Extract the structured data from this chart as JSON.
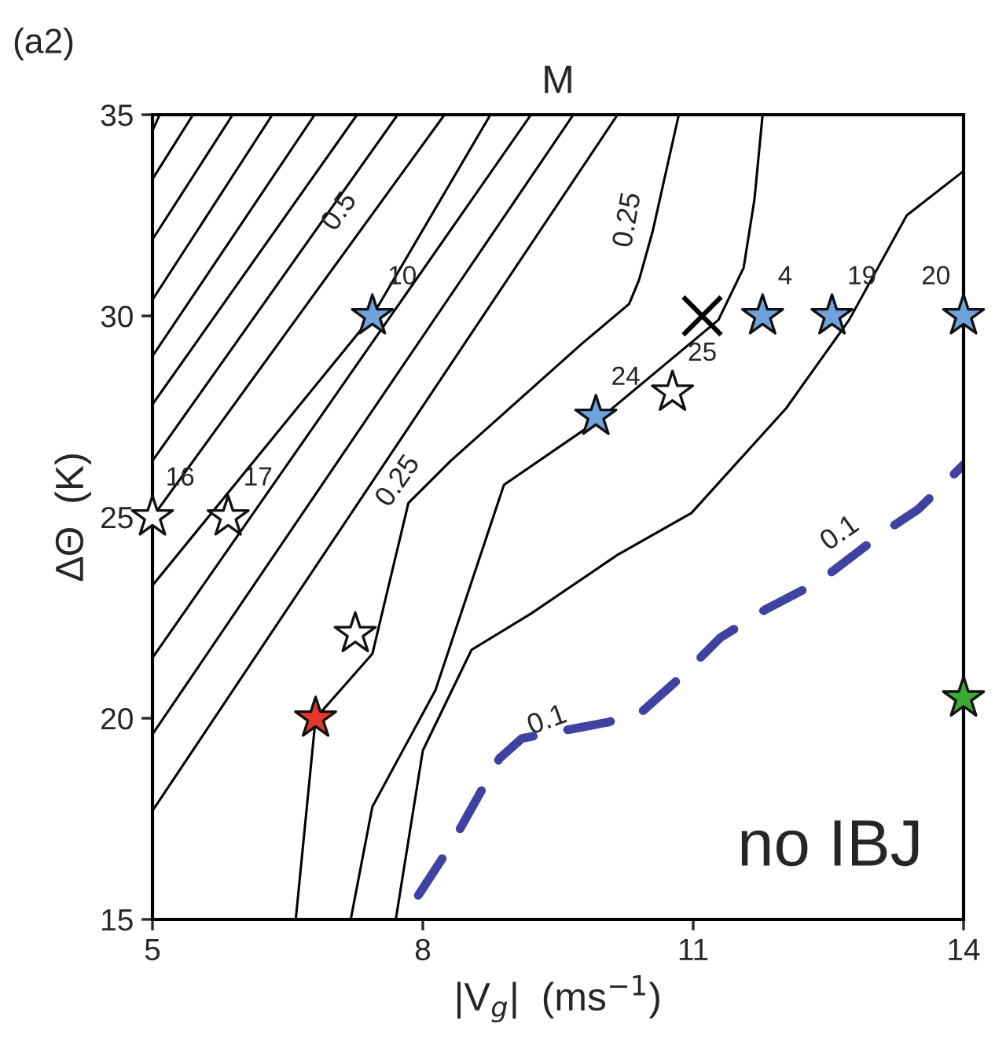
{
  "chart_data": {
    "type": "line",
    "title": "M",
    "xlabel": "|V$_{g}$|  (ms$^{−1}$)",
    "ylabel": "ΔΘ  (K)",
    "xlim": [
      5,
      14
    ],
    "ylim": [
      15,
      35
    ],
    "xticks": [
      5,
      8,
      11,
      14
    ],
    "yticks": [
      15,
      20,
      25,
      30,
      35
    ],
    "grid": false,
    "marker": "none",
    "line_style": "solid",
    "series": [
      {
        "color": "#000000",
        "x": [
          5,
          5.08
        ],
        "values": [
          34.6,
          35
        ]
      },
      {
        "color": "#000000",
        "x": [
          5,
          5.45
        ],
        "values": [
          33.4,
          35
        ]
      },
      {
        "color": "#000000",
        "x": [
          5,
          5.89
        ],
        "values": [
          31.9,
          35
        ]
      },
      {
        "color": "#000000",
        "x": [
          5,
          6.33
        ],
        "values": [
          30.4,
          35
        ]
      },
      {
        "color": "#000000",
        "x": [
          5,
          6.8
        ],
        "values": [
          29.0,
          35
        ]
      },
      {
        "color": "#000000",
        "x": [
          5,
          7.27
        ],
        "values": [
          27.8,
          35
        ]
      },
      {
        "color": "#000000",
        "x": [
          5,
          7.72
        ],
        "values": [
          26.4,
          35
        ]
      },
      {
        "color": "#000000",
        "x": [
          5,
          8.24
        ],
        "values": [
          25.0,
          35
        ]
      },
      {
        "color": "#000000",
        "x": [
          5,
          7.44,
          8.75
        ],
        "values": [
          23.3,
          30.0,
          35
        ]
      },
      {
        "color": "#000000",
        "x": [
          5,
          9.2
        ],
        "values": [
          21.5,
          35
        ]
      },
      {
        "color": "#000000",
        "x": [
          5,
          9.67
        ],
        "values": [
          19.6,
          35
        ]
      },
      {
        "color": "#000000",
        "x": [
          5,
          10.16
        ],
        "values": [
          17.7,
          35
        ]
      },
      {
        "color": "#000000",
        "x": [
          6.59,
          6.81,
          7.44,
          7.84,
          8.31,
          9.76,
          10.29,
          10.4,
          10.55,
          10.84
        ],
        "values": [
          15,
          20.0,
          21.6,
          25.35,
          26.4,
          29.3,
          30.3,
          30.9,
          32.1,
          35
        ]
      },
      {
        "color": "#000000",
        "x": [
          7.2,
          7.44,
          8.14,
          8.9,
          9.94,
          11.28,
          11.56,
          11.68,
          11.77
        ],
        "values": [
          15,
          17.8,
          20.7,
          25.8,
          27.4,
          29.9,
          31.2,
          32.9,
          35
        ]
      },
      {
        "color": "#000000",
        "x": [
          7.7,
          8.0,
          8.54,
          9.2,
          10.16,
          10.98,
          12.03,
          12.73,
          13.37,
          14
        ],
        "values": [
          15,
          19.2,
          21.7,
          22.6,
          24.06,
          25.1,
          27.7,
          29.9,
          32.5,
          33.6
        ]
      },
      {
        "color": "#3f42a0",
        "line_style": "dashed",
        "x": [
          7.95,
          8.3,
          8.6,
          8.85,
          9.1,
          10.05,
          10.4,
          10.9,
          11.3,
          11.8,
          12.4,
          13.1,
          13.5,
          14
        ],
        "values": [
          15.6,
          16.8,
          18.0,
          19.0,
          19.5,
          19.9,
          20.1,
          21.1,
          22.0,
          22.7,
          23.4,
          24.6,
          25.2,
          26.3
        ]
      },
      {
        "type": "scatter",
        "marker": "star",
        "color": "#6fa3dc",
        "x": [
          7.44,
          11.77,
          12.54,
          14,
          9.92
        ],
        "values": [
          30,
          30,
          30,
          30,
          27.5
        ]
      },
      {
        "type": "scatter",
        "marker": "star",
        "color": "#ffffff",
        "x": [
          5,
          5.84,
          10.77,
          7.25
        ],
        "values": [
          25,
          25,
          28.1,
          22.1
        ]
      },
      {
        "type": "scatter",
        "marker": "star",
        "color": "#e8352e",
        "x": [
          6.81
        ],
        "values": [
          20.0
        ]
      },
      {
        "type": "scatter",
        "marker": "star",
        "color": "#3aa935",
        "x": [
          14
        ],
        "values": [
          20.5
        ]
      },
      {
        "type": "scatter",
        "marker": "cross",
        "color": "#000000",
        "x": [
          11.1
        ],
        "values": [
          30
        ]
      }
    ],
    "annotations": [
      "(a2)",
      "no IBJ",
      {
        "text": "0.5",
        "x": 7.3,
        "y": 32.2
      },
      {
        "text": "0.25",
        "x": 10.5,
        "y": 32.0
      },
      {
        "text": "0.25",
        "x": 7.95,
        "y": 25.5
      },
      {
        "text": "0.1",
        "x": 9.6,
        "y": 19.55
      },
      {
        "text": "0.1",
        "x": 12.85,
        "y": 24.2
      },
      {
        "text": "10",
        "x": 7.44,
        "y": 30
      },
      {
        "text": "4",
        "x": 11.77,
        "y": 30
      },
      {
        "text": "19",
        "x": 12.54,
        "y": 30
      },
      {
        "text": "20",
        "x": 14,
        "y": 30
      },
      {
        "text": "24",
        "x": 9.92,
        "y": 27.5
      },
      {
        "text": "16",
        "x": 5,
        "y": 25
      },
      {
        "text": "17",
        "x": 5.84,
        "y": 25
      },
      {
        "text": "25",
        "x": 10.77,
        "y": 28.1
      }
    ]
  }
}
